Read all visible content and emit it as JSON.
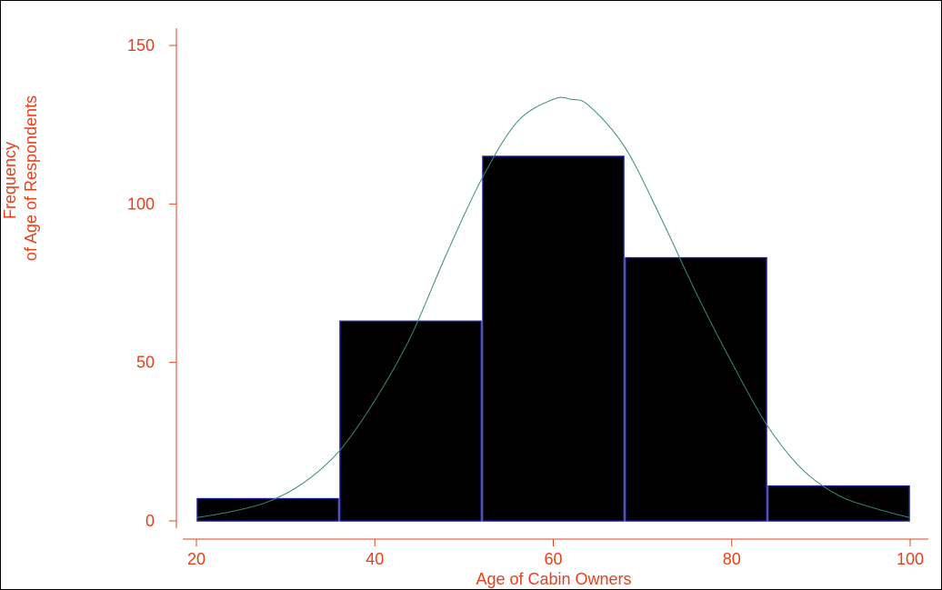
{
  "chart_data": {
    "type": "bar",
    "subtype": "histogram-with-normal-density",
    "xlabel": "Age of Cabin Owners",
    "ylabel": [
      "Frequency",
      "of Age of Respondents"
    ],
    "xlim": [
      20,
      100
    ],
    "ylim": [
      0,
      150
    ],
    "xticks": [
      20,
      40,
      60,
      80,
      100
    ],
    "yticks": [
      0,
      50,
      100,
      150
    ],
    "bin_edges": [
      20,
      36,
      52,
      68,
      84,
      100
    ],
    "values": [
      7,
      63,
      115,
      83,
      11
    ],
    "normal_curve": {
      "x": [
        20,
        24,
        28,
        32,
        36,
        40,
        44,
        48,
        52,
        56,
        60,
        62,
        64,
        68,
        72,
        76,
        80,
        84,
        88,
        92,
        96,
        100
      ],
      "y": [
        1,
        3,
        6,
        12,
        22,
        38,
        58,
        84,
        108,
        126,
        133,
        133,
        131,
        118,
        96,
        72,
        50,
        30,
        16,
        8,
        4,
        1
      ]
    },
    "grid": false,
    "legend": "none",
    "colors": {
      "bar_fill": "#000000",
      "bar_edge": "#1a1a8c",
      "curve": "#3a8a7a",
      "axis": "#e8401c",
      "text": "#e8401c"
    }
  }
}
